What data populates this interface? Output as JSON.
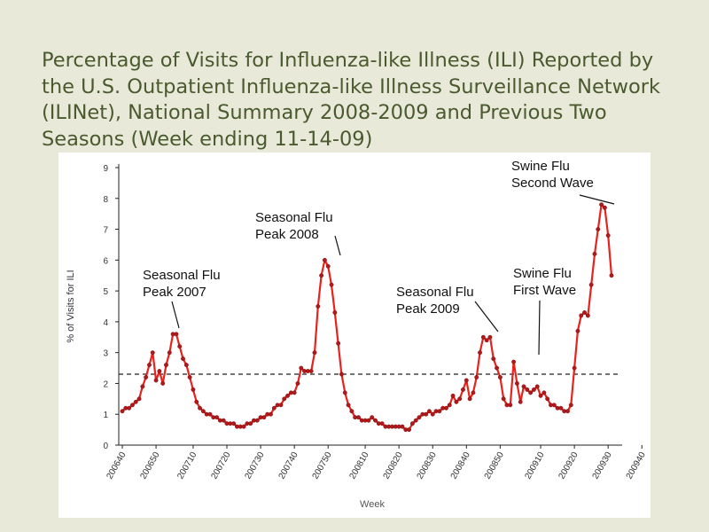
{
  "slide": {
    "title": "Percentage of Visits for Influenza-like Illness (ILI) Reported by the U.S. Outpatient Influenza-like Illness Surveillance Network (ILINet), National Summary 2008-2009 and Previous Two Seasons (Week ending 11-14-09)"
  },
  "chart_data": {
    "type": "line",
    "title": "",
    "xlabel": "Week",
    "ylabel": "% of Visits for ILI",
    "ylim": [
      0,
      9
    ],
    "yticks": [
      0,
      1,
      2,
      3,
      4,
      5,
      6,
      7,
      8,
      9
    ],
    "x_tick_labels": [
      "200640",
      "200650",
      "200710",
      "200720",
      "200730",
      "200740",
      "200750",
      "200810",
      "200820",
      "200830",
      "200840",
      "200850",
      "200910",
      "200920",
      "200930",
      "200940"
    ],
    "x_tick_index": [
      0,
      10,
      21,
      31,
      41,
      51,
      61,
      72,
      82,
      92,
      102,
      112,
      124,
      134,
      144,
      154
    ],
    "baseline": 2.3,
    "series": [
      {
        "name": "% of Visits for ILI",
        "color": "#e8221d",
        "values": [
          1.1,
          1.2,
          1.2,
          1.3,
          1.4,
          1.5,
          1.9,
          2.2,
          2.6,
          3.0,
          2.1,
          2.4,
          2.0,
          2.6,
          3.0,
          3.6,
          3.6,
          3.2,
          2.8,
          2.6,
          2.2,
          1.8,
          1.4,
          1.2,
          1.1,
          1.0,
          1.0,
          0.9,
          0.9,
          0.8,
          0.8,
          0.7,
          0.7,
          0.7,
          0.6,
          0.6,
          0.6,
          0.7,
          0.7,
          0.8,
          0.8,
          0.9,
          0.9,
          1.0,
          1.0,
          1.2,
          1.3,
          1.3,
          1.5,
          1.6,
          1.7,
          1.7,
          2.0,
          2.5,
          2.4,
          2.4,
          2.4,
          3.0,
          4.5,
          5.5,
          6.0,
          5.8,
          5.2,
          4.3,
          3.3,
          2.3,
          1.7,
          1.3,
          1.1,
          0.9,
          0.9,
          0.8,
          0.8,
          0.8,
          0.9,
          0.8,
          0.7,
          0.7,
          0.6,
          0.6,
          0.6,
          0.6,
          0.6,
          0.6,
          0.5,
          0.5,
          0.7,
          0.8,
          0.9,
          1.0,
          1.0,
          1.1,
          1.0,
          1.1,
          1.1,
          1.2,
          1.2,
          1.3,
          1.6,
          1.4,
          1.5,
          1.8,
          2.1,
          1.5,
          1.7,
          2.2,
          3.0,
          3.5,
          3.4,
          3.5,
          2.8,
          2.5,
          2.2,
          1.5,
          1.3,
          1.3,
          2.7,
          2.0,
          1.4,
          1.9,
          1.8,
          1.7,
          1.8,
          1.9,
          1.6,
          1.7,
          1.5,
          1.3,
          1.3,
          1.2,
          1.2,
          1.1,
          1.1,
          1.3,
          2.5,
          3.7,
          4.2,
          4.3,
          4.2,
          5.2,
          6.2,
          7.0,
          7.8,
          7.7,
          6.8,
          5.5
        ]
      }
    ],
    "annotations": [
      {
        "line1": "Seasonal Flu",
        "line2": "Peak 2007"
      },
      {
        "line1": "Seasonal Flu",
        "line2": "Peak 2008"
      },
      {
        "line1": "Seasonal Flu",
        "line2": "Peak 2009"
      },
      {
        "line1": "Swine Flu",
        "line2": "First Wave"
      },
      {
        "line1": "Swine Flu",
        "line2": "Second Wave"
      }
    ]
  }
}
